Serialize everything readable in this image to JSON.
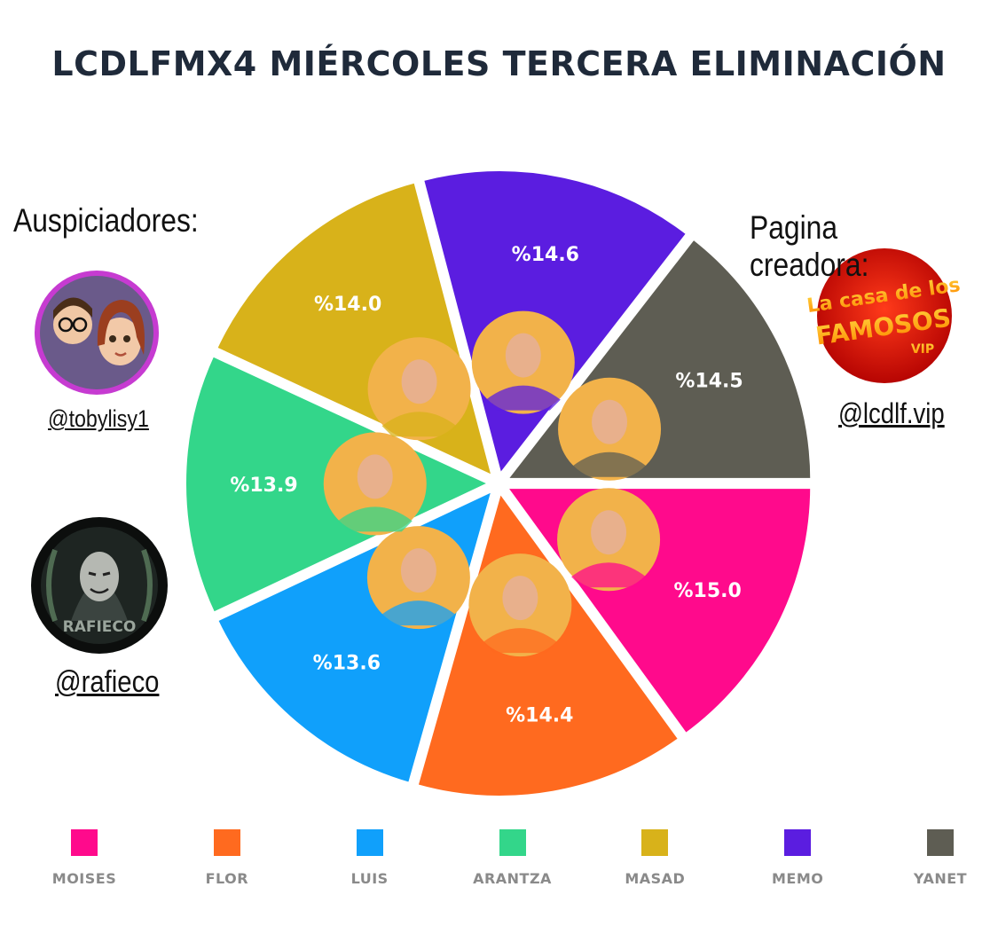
{
  "chart_data": {
    "type": "pie",
    "title": "LCDLFMX4  MIÉRCOLES TERCERA ELIMINACIÓN",
    "labels": [
      "MOISES",
      "FLOR",
      "LUIS",
      "ARANTZA",
      "MASAD",
      "MEMO",
      "YANET"
    ],
    "values": [
      15.0,
      14.4,
      13.6,
      13.9,
      14.0,
      14.6,
      14.5
    ],
    "value_labels": [
      "%15.0",
      "%14.4",
      "%13.6",
      "%13.9",
      "%14.0",
      "%14.6",
      "%14.5"
    ],
    "colors": [
      "#ff0a8c",
      "#ff6a1f",
      "#10a0fb",
      "#33d68a",
      "#d8b21a",
      "#5b1de0",
      "#5e5d53"
    ],
    "start_angle_deg": 0,
    "direction": "clockwise",
    "legend_position": "bottom"
  },
  "sponsors": {
    "heading": "Auspiciadores:",
    "items": [
      {
        "handle": "@tobylisy1",
        "icon": "cartoon-couple-avatar"
      },
      {
        "handle": "@rafieco",
        "icon": "masked-figure-logo"
      }
    ]
  },
  "creator": {
    "heading": "Pagina creadora:",
    "handle": "@lcdlf.vip",
    "logo": {
      "line1": "La casa de los",
      "line2": "FAMOSOS",
      "line3": "VIP"
    }
  }
}
